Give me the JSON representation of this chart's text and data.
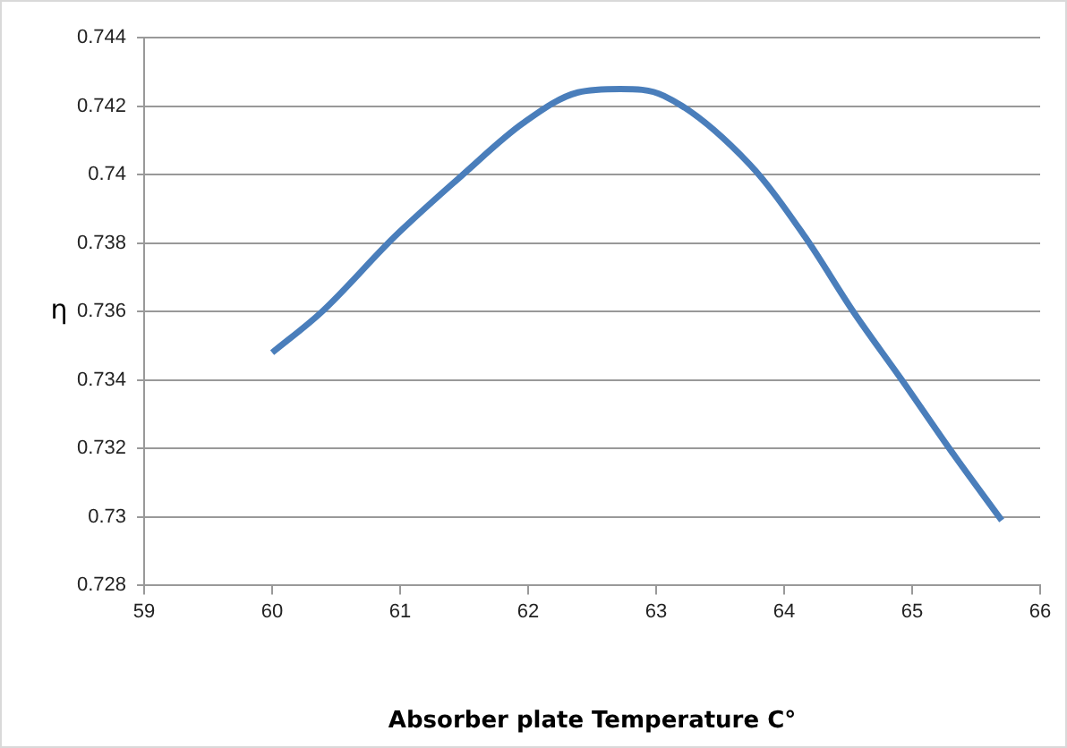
{
  "chart_data": {
    "type": "line",
    "xlabel": "Absorber plate Temperature C°",
    "ylabel": "η",
    "x": [
      60,
      60.39,
      60.96,
      61.49,
      61.96,
      62.39,
      62.72,
      63.06,
      63.73,
      64.16,
      64.54,
      64.92,
      65.31,
      65.7
    ],
    "series": [
      {
        "color": "#4a7ebb",
        "values": [
          0.7348,
          0.736,
          0.7382,
          0.74,
          0.7415,
          0.7424,
          0.7425,
          0.7423,
          0.7403,
          0.7382,
          0.736,
          0.734,
          0.7319,
          0.7299
        ]
      }
    ],
    "xlim": [
      59,
      66
    ],
    "xticks": [
      59,
      60,
      61,
      62,
      63,
      64,
      65,
      66
    ],
    "ylim": [
      0.728,
      0.744
    ],
    "yticks": [
      0.728,
      0.73,
      0.732,
      0.734,
      0.736,
      0.738,
      0.74,
      0.742,
      0.744
    ],
    "grid": "y",
    "legend": false,
    "marker": "none",
    "line_style": "solid"
  }
}
